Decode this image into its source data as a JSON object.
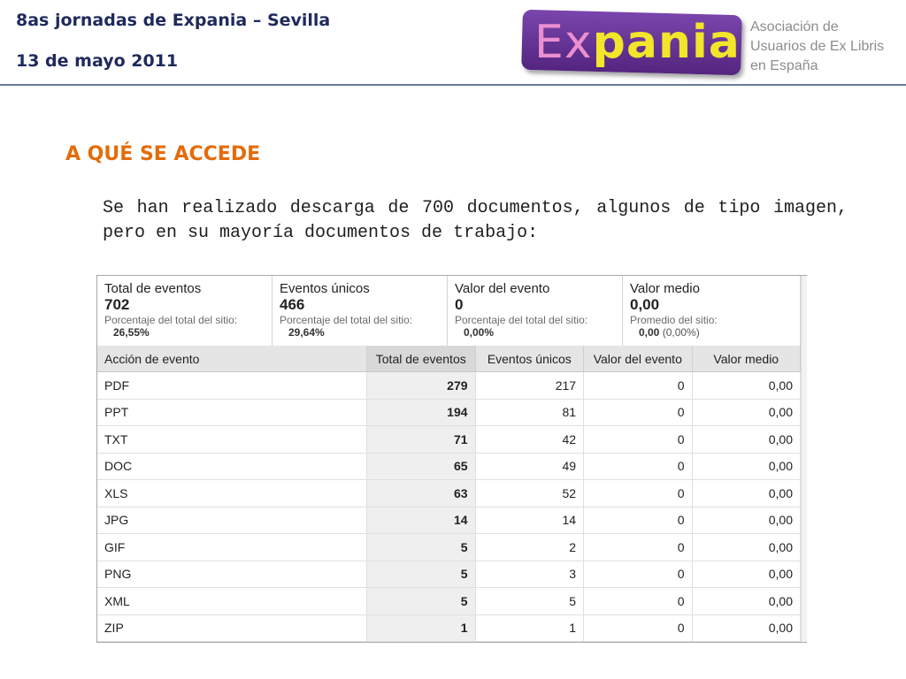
{
  "header": {
    "title": "8as jornadas de Expania – Sevilla",
    "date": "13 de mayo 2011"
  },
  "logo": {
    "word_ex": "Ex",
    "word_pania": "pania",
    "caption": [
      "Asociación de",
      "Usuarios de Ex Libris",
      "en España"
    ],
    "colors": {
      "box": "#6a35a0",
      "ex": "#ec8fd0",
      "pania": "#f2e52a"
    }
  },
  "section": {
    "title": "A QUÉ SE ACCEDE",
    "text": "Se han realizado descarga de 700 documentos, algunos de tipo imagen, pero en su mayoría documentos de trabajo:"
  },
  "summary": [
    {
      "label": "Total de eventos",
      "value": "702",
      "sub": "Porcentaje del total del sitio:",
      "subval": "26,55%",
      "extra": ""
    },
    {
      "label": "Eventos únicos",
      "value": "466",
      "sub": "Porcentaje del total del sitio:",
      "subval": "29,64%",
      "extra": ""
    },
    {
      "label": "Valor del evento",
      "value": "0",
      "sub": "Porcentaje del total del sitio:",
      "subval": "0,00%",
      "extra": ""
    },
    {
      "label": "Valor medio",
      "value": "0,00",
      "sub": "Promedio del sitio:",
      "subval": "0,00",
      "extra": " (0,00%)"
    }
  ],
  "table": {
    "columns": [
      "Acción de evento",
      "Total de eventos",
      "Eventos únicos",
      "Valor del evento",
      "Valor medio"
    ],
    "rows": [
      [
        "PDF",
        "279",
        "217",
        "0",
        "0,00"
      ],
      [
        "PPT",
        "194",
        "81",
        "0",
        "0,00"
      ],
      [
        "TXT",
        "71",
        "42",
        "0",
        "0,00"
      ],
      [
        "DOC",
        "65",
        "49",
        "0",
        "0,00"
      ],
      [
        "XLS",
        "63",
        "52",
        "0",
        "0,00"
      ],
      [
        "JPG",
        "14",
        "14",
        "0",
        "0,00"
      ],
      [
        "GIF",
        "5",
        "2",
        "0",
        "0,00"
      ],
      [
        "PNG",
        "5",
        "3",
        "0",
        "0,00"
      ],
      [
        "XML",
        "5",
        "5",
        "0",
        "0,00"
      ],
      [
        "ZIP",
        "1",
        "1",
        "0",
        "0,00"
      ]
    ]
  }
}
